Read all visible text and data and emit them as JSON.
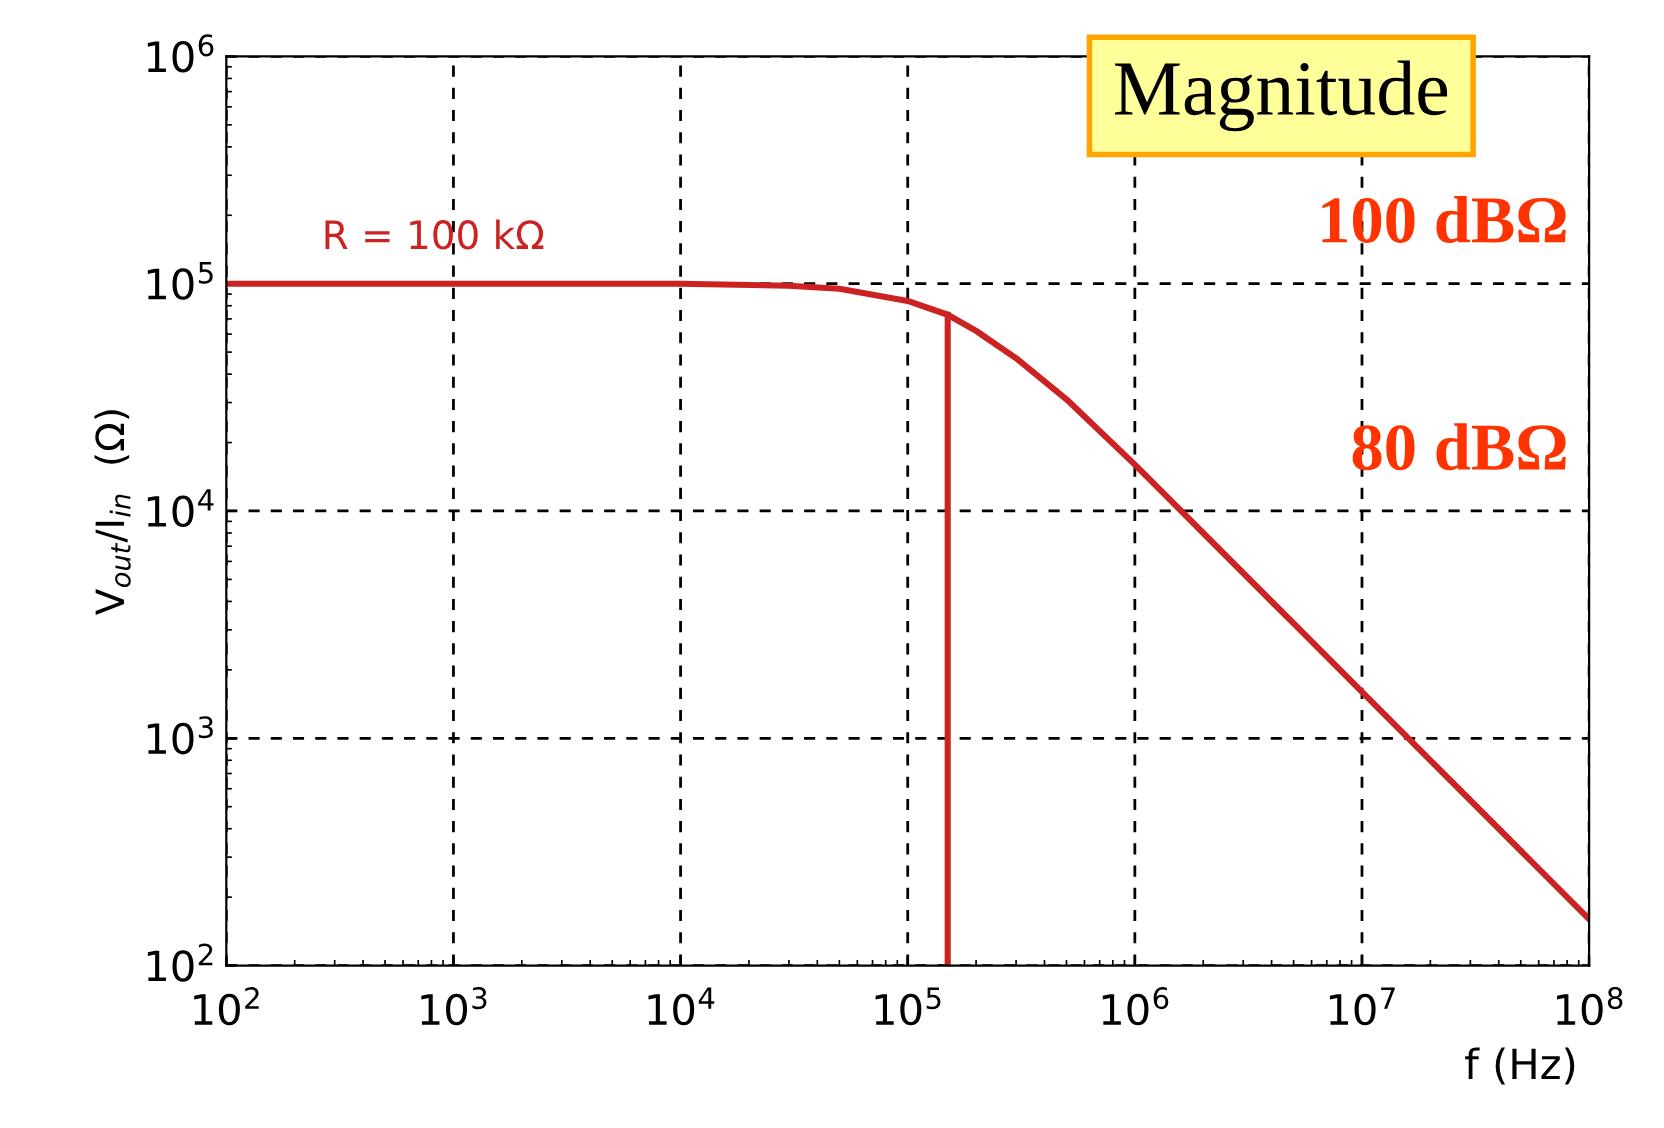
{
  "chart_data": {
    "type": "line",
    "title": "Magnitude",
    "xlabel": "f (Hz)",
    "ylabel": "V$_{out}$/I$_{in}$  (Ω)",
    "log": "xy",
    "grid": true,
    "line_style": "solid",
    "marker": "none",
    "xlim": [
      100,
      100000000
    ],
    "ylim": [
      100,
      1000000
    ],
    "xticks": [
      {
        "value": 100,
        "label": "10$^{2}$"
      },
      {
        "value": 1000,
        "label": "10$^{3}$"
      },
      {
        "value": 10000,
        "label": "10$^{4}$"
      },
      {
        "value": 100000,
        "label": "10$^{5}$"
      },
      {
        "value": 1000000,
        "label": "10$^{6}$"
      },
      {
        "value": 10000000,
        "label": "10$^{7}$"
      },
      {
        "value": 100000000,
        "label": "10$^{8}$"
      }
    ],
    "yticks": [
      {
        "value": 100,
        "label": "10$^{2}$"
      },
      {
        "value": 1000,
        "label": "10$^{3}$"
      },
      {
        "value": 10000,
        "label": "10$^{4}$"
      },
      {
        "value": 100000,
        "label": "10$^{5}$"
      },
      {
        "value": 1000000,
        "label": "10$^{6}$"
      }
    ],
    "series": [
      {
        "color": "#cc2222",
        "x": [
          100,
          1000,
          10000,
          30000,
          50000,
          100000,
          150000,
          200000,
          300000,
          500000,
          1000000,
          2000000,
          5000000,
          10000000,
          20000000,
          50000000,
          100000000
        ],
        "values": [
          100000,
          100000,
          100000,
          98000,
          95000,
          84000,
          73000,
          62000,
          47000,
          31000,
          16000,
          8000,
          3200,
          1600,
          800,
          320,
          160
        ]
      },
      {
        "color": "#cc2222",
        "x": [
          150000,
          150000
        ],
        "values": [
          100,
          73000
        ]
      }
    ],
    "annotations": [
      "R = 100 kΩ",
      "100 dBΩ",
      "80 dBΩ"
    ]
  }
}
